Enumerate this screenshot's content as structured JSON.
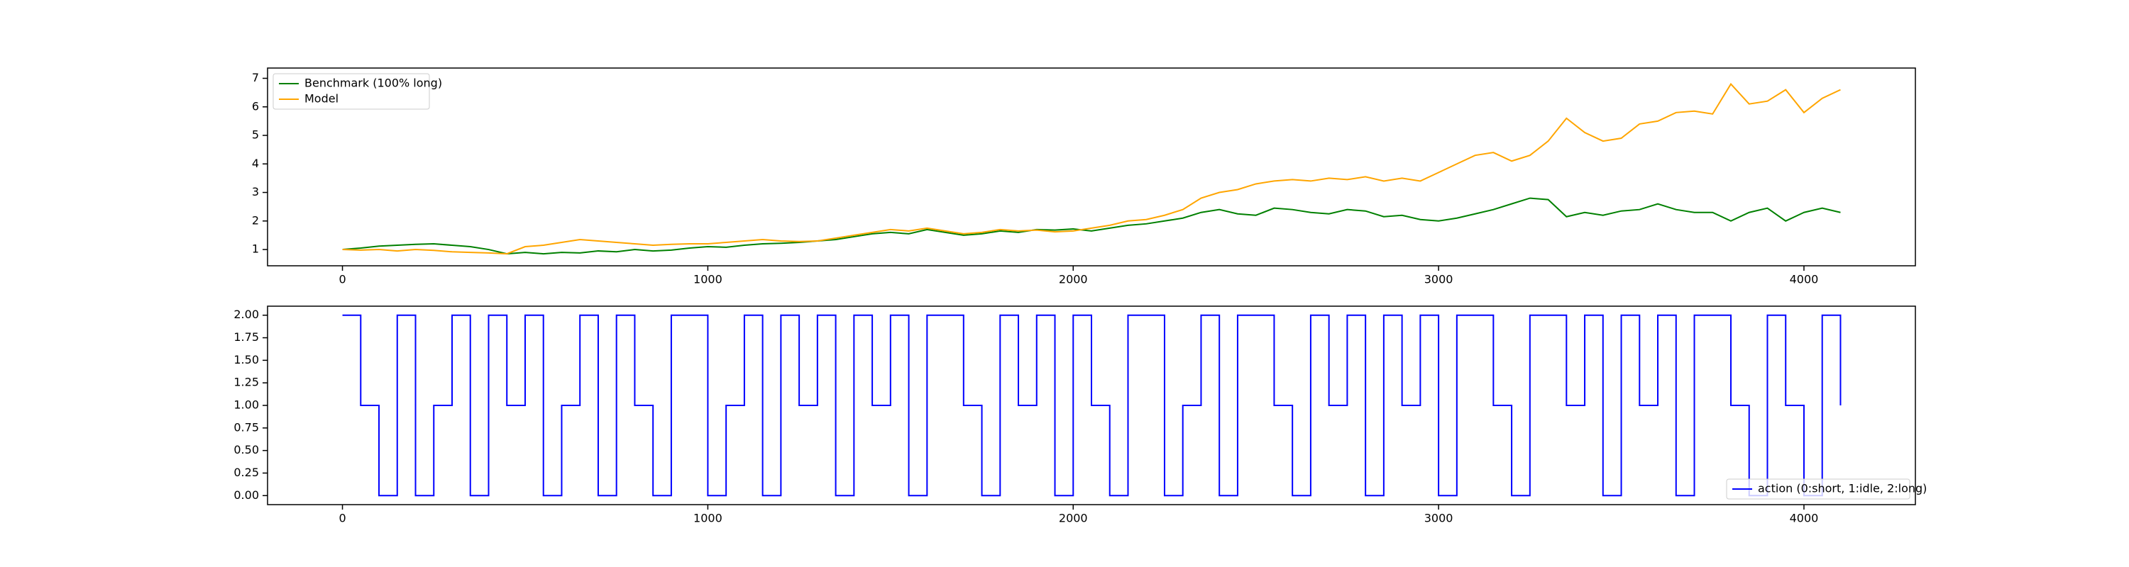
{
  "chart_data": [
    {
      "type": "line",
      "legend": "upper left",
      "grid": false,
      "x": [
        0,
        50,
        100,
        150,
        200,
        250,
        300,
        350,
        400,
        450,
        500,
        550,
        600,
        650,
        700,
        750,
        800,
        850,
        900,
        950,
        1000,
        1050,
        1100,
        1150,
        1200,
        1250,
        1300,
        1350,
        1400,
        1450,
        1500,
        1550,
        1600,
        1650,
        1700,
        1750,
        1800,
        1850,
        1900,
        1950,
        2000,
        2050,
        2100,
        2150,
        2200,
        2250,
        2300,
        2350,
        2400,
        2450,
        2500,
        2550,
        2600,
        2650,
        2700,
        2750,
        2800,
        2850,
        2900,
        2950,
        3000,
        3050,
        3100,
        3150,
        3200,
        3250,
        3300,
        3350,
        3400,
        3450,
        3500,
        3550,
        3600,
        3650,
        3700,
        3750,
        3800,
        3850,
        3900,
        3950,
        4000,
        4050,
        4100
      ],
      "series": [
        {
          "name": "Benchmark (100% long)",
          "color": "#008000",
          "values": [
            1.0,
            1.05,
            1.12,
            1.15,
            1.18,
            1.2,
            1.15,
            1.1,
            1.0,
            0.85,
            0.9,
            0.85,
            0.9,
            0.88,
            0.95,
            0.92,
            1.0,
            0.95,
            0.98,
            1.05,
            1.1,
            1.08,
            1.15,
            1.2,
            1.22,
            1.25,
            1.3,
            1.35,
            1.45,
            1.55,
            1.6,
            1.55,
            1.7,
            1.6,
            1.5,
            1.55,
            1.65,
            1.6,
            1.7,
            1.68,
            1.72,
            1.65,
            1.75,
            1.85,
            1.9,
            2.0,
            2.1,
            2.3,
            2.4,
            2.25,
            2.2,
            2.45,
            2.4,
            2.3,
            2.25,
            2.4,
            2.35,
            2.15,
            2.2,
            2.05,
            2.0,
            2.1,
            2.25,
            2.4,
            2.6,
            2.8,
            2.75,
            2.15,
            2.3,
            2.2,
            2.35,
            2.4,
            2.6,
            2.4,
            2.3,
            2.3,
            2.0,
            2.3,
            2.45,
            2.0,
            2.3,
            2.45,
            2.3
          ]
        },
        {
          "name": "Model",
          "color": "#ffa500",
          "values": [
            1.0,
            0.98,
            1.0,
            0.95,
            1.0,
            0.97,
            0.92,
            0.9,
            0.88,
            0.85,
            1.1,
            1.15,
            1.25,
            1.35,
            1.3,
            1.25,
            1.2,
            1.15,
            1.18,
            1.2,
            1.2,
            1.25,
            1.3,
            1.35,
            1.3,
            1.28,
            1.3,
            1.4,
            1.5,
            1.6,
            1.7,
            1.65,
            1.75,
            1.65,
            1.55,
            1.6,
            1.7,
            1.65,
            1.68,
            1.62,
            1.65,
            1.75,
            1.85,
            2.0,
            2.05,
            2.2,
            2.4,
            2.8,
            3.0,
            3.1,
            3.3,
            3.4,
            3.45,
            3.4,
            3.5,
            3.45,
            3.55,
            3.4,
            3.5,
            3.4,
            3.7,
            4.0,
            4.3,
            4.4,
            4.1,
            4.3,
            4.8,
            5.6,
            5.1,
            4.8,
            4.9,
            5.4,
            5.5,
            5.8,
            5.85,
            5.75,
            6.8,
            6.1,
            6.2,
            6.6,
            5.8,
            6.3,
            6.6
          ]
        }
      ],
      "xlim": [
        -205,
        4305
      ],
      "xticks": [
        0,
        1000,
        2000,
        3000,
        4000
      ],
      "ylim": [
        0.43,
        7.36
      ],
      "yticks": [
        1,
        2,
        3,
        4,
        5,
        6,
        7
      ]
    },
    {
      "type": "step",
      "legend": "lower right",
      "grid": false,
      "x": [
        0,
        50,
        100,
        150,
        200,
        250,
        300,
        350,
        400,
        450,
        500,
        550,
        600,
        650,
        700,
        750,
        800,
        850,
        900,
        950,
        1000,
        1050,
        1100,
        1150,
        1200,
        1250,
        1300,
        1350,
        1400,
        1450,
        1500,
        1550,
        1600,
        1650,
        1700,
        1750,
        1800,
        1850,
        1900,
        1950,
        2000,
        2050,
        2100,
        2150,
        2200,
        2250,
        2300,
        2350,
        2400,
        2450,
        2500,
        2550,
        2600,
        2650,
        2700,
        2750,
        2800,
        2850,
        2900,
        2950,
        3000,
        3050,
        3100,
        3150,
        3200,
        3250,
        3300,
        3350,
        3400,
        3450,
        3500,
        3550,
        3600,
        3650,
        3700,
        3750,
        3800,
        3850,
        3900,
        3950,
        4000,
        4050,
        4100
      ],
      "series": [
        {
          "name": "action (0:short, 1:idle, 2:long)",
          "color": "#0000ff",
          "values": [
            2,
            1,
            0,
            2,
            0,
            1,
            2,
            0,
            2,
            1,
            2,
            0,
            1,
            2,
            0,
            2,
            1,
            0,
            2,
            2,
            0,
            1,
            2,
            0,
            2,
            1,
            2,
            0,
            2,
            1,
            2,
            0,
            2,
            2,
            1,
            0,
            2,
            1,
            2,
            0,
            2,
            1,
            0,
            2,
            2,
            0,
            1,
            2,
            0,
            2,
            2,
            1,
            0,
            2,
            1,
            2,
            0,
            2,
            1,
            2,
            0,
            2,
            2,
            1,
            0,
            2,
            2,
            1,
            2,
            0,
            2,
            1,
            2,
            0,
            2,
            2,
            1,
            0,
            2,
            1,
            0,
            2,
            1
          ]
        }
      ],
      "xlim": [
        -205,
        4305
      ],
      "xticks": [
        0,
        1000,
        2000,
        3000,
        4000
      ],
      "ylim": [
        -0.1,
        2.1
      ],
      "yticks": [
        {
          "value": 0,
          "label": "0.00"
        },
        {
          "value": 0.25,
          "label": "0.25"
        },
        {
          "value": 0.5,
          "label": "0.50"
        },
        {
          "value": 0.75,
          "label": "0.75"
        },
        {
          "value": 1,
          "label": "1.00"
        },
        {
          "value": 1.25,
          "label": "1.25"
        },
        {
          "value": 1.5,
          "label": "1.50"
        },
        {
          "value": 1.75,
          "label": "1.75"
        },
        {
          "value": 2,
          "label": "2.00"
        }
      ]
    }
  ]
}
